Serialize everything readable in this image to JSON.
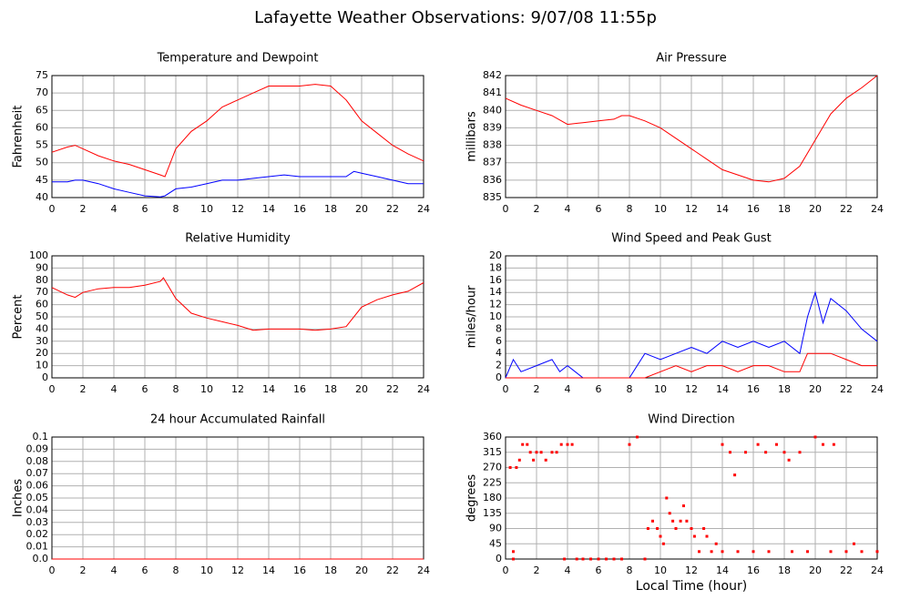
{
  "title": "Lafayette Weather Observations: 9/07/08 11:55p",
  "xlabel": "Local Time (hour)",
  "chart_data": [
    {
      "type": "line",
      "title": "Temperature and Dewpoint",
      "ylabel": "Fahrenheit",
      "x": [
        0,
        1,
        1.5,
        2,
        3,
        4,
        5,
        6,
        7,
        7.3,
        8,
        9,
        10,
        11,
        12,
        13,
        14,
        15,
        16,
        17,
        18,
        19,
        19.5,
        20,
        21,
        22,
        23,
        24
      ],
      "series": [
        {
          "color": "#ff0000",
          "values": [
            53,
            54.5,
            55,
            54,
            52,
            50.5,
            49.5,
            48,
            46.5,
            46,
            54,
            59,
            62,
            66,
            68,
            70,
            72,
            72,
            72,
            72.5,
            72,
            68,
            65,
            62,
            58.5,
            55,
            52.5,
            50.5
          ]
        },
        {
          "color": "#0000ff",
          "values": [
            44.5,
            44.5,
            45,
            45,
            44,
            42.5,
            41.5,
            40.5,
            40.2,
            40.5,
            42.5,
            43,
            44,
            45,
            45,
            45.5,
            46,
            46.5,
            46,
            46,
            46,
            46,
            47.5,
            47,
            46,
            45,
            44,
            44
          ]
        }
      ],
      "xlim": [
        0,
        24
      ],
      "xticks": [
        0,
        2,
        4,
        6,
        8,
        10,
        12,
        14,
        16,
        18,
        20,
        22,
        24
      ],
      "ylim": [
        40,
        75
      ],
      "yticks": [
        40,
        45,
        50,
        55,
        60,
        65,
        70,
        75
      ],
      "grid": true
    },
    {
      "type": "line",
      "title": "Air Pressure",
      "ylabel": "millibars",
      "x": [
        0,
        1,
        2,
        3,
        4,
        5,
        6,
        7,
        7.5,
        8,
        9,
        10,
        11,
        12,
        13,
        14,
        15,
        16,
        17,
        18,
        19,
        20,
        21,
        22,
        23,
        24
      ],
      "series": [
        {
          "color": "#ff0000",
          "values": [
            840.7,
            840.3,
            840,
            839.7,
            839.2,
            839.3,
            839.4,
            839.5,
            839.7,
            839.7,
            839.4,
            839,
            838.4,
            837.8,
            837.2,
            836.6,
            836.3,
            836,
            835.9,
            836.1,
            836.8,
            838.3,
            839.8,
            840.7,
            841.3,
            842
          ]
        }
      ],
      "xlim": [
        0,
        24
      ],
      "xticks": [
        0,
        2,
        4,
        6,
        8,
        10,
        12,
        14,
        16,
        18,
        20,
        22,
        24
      ],
      "ylim": [
        835,
        842
      ],
      "yticks": [
        835,
        836,
        837,
        838,
        839,
        840,
        841,
        842
      ],
      "grid": true
    },
    {
      "type": "line",
      "title": "Relative Humidity",
      "ylabel": "Percent",
      "x": [
        0,
        1,
        1.5,
        2,
        3,
        4,
        5,
        6,
        7,
        7.2,
        8,
        9,
        10,
        11,
        12,
        13,
        14,
        15,
        16,
        17,
        18,
        19,
        20,
        21,
        22,
        23,
        24
      ],
      "series": [
        {
          "color": "#ff0000",
          "values": [
            74,
            68,
            66,
            70,
            73,
            74,
            74,
            76,
            79,
            82,
            65,
            53,
            49,
            46,
            43,
            39,
            40,
            40,
            40,
            39,
            40,
            42,
            58,
            64,
            68,
            71,
            78
          ]
        }
      ],
      "xlim": [
        0,
        24
      ],
      "xticks": [
        0,
        2,
        4,
        6,
        8,
        10,
        12,
        14,
        16,
        18,
        20,
        22,
        24
      ],
      "ylim": [
        0,
        100
      ],
      "yticks": [
        0,
        10,
        20,
        30,
        40,
        50,
        60,
        70,
        80,
        90,
        100
      ],
      "grid": true
    },
    {
      "type": "line",
      "title": "Wind Speed and Peak Gust",
      "ylabel": "miles/hour",
      "x": [
        0,
        0.5,
        1,
        2,
        3,
        3.5,
        4,
        4.5,
        5,
        8,
        9,
        10,
        11,
        12,
        13,
        14,
        15,
        16,
        17,
        18,
        19,
        19.5,
        20,
        20.5,
        21,
        22,
        23,
        24
      ],
      "series": [
        {
          "color": "#0000ff",
          "values": [
            0,
            3,
            1,
            2,
            3,
            1,
            2,
            1,
            0,
            0,
            4,
            3,
            4,
            5,
            4,
            6,
            5,
            6,
            5,
            6,
            4,
            10,
            14,
            9,
            13,
            11,
            8,
            6
          ]
        },
        {
          "color": "#ff0000",
          "values": [
            0,
            0,
            0,
            0,
            0,
            0,
            0,
            0,
            0,
            0,
            0,
            1,
            2,
            1,
            2,
            2,
            1,
            2,
            2,
            1,
            1,
            4,
            4,
            4,
            4,
            3,
            2,
            2
          ]
        }
      ],
      "xlim": [
        0,
        24
      ],
      "xticks": [
        0,
        2,
        4,
        6,
        8,
        10,
        12,
        14,
        16,
        18,
        20,
        22,
        24
      ],
      "ylim": [
        0,
        20
      ],
      "yticks": [
        0,
        2,
        4,
        6,
        8,
        10,
        12,
        14,
        16,
        18,
        20
      ],
      "grid": true
    },
    {
      "type": "line",
      "title": "24 hour Accumulated Rainfall",
      "ylabel": "Inches",
      "x": [
        0,
        24
      ],
      "series": [
        {
          "color": "#ff0000",
          "values": [
            0,
            0
          ]
        }
      ],
      "xlim": [
        0,
        24
      ],
      "xticks": [
        0,
        2,
        4,
        6,
        8,
        10,
        12,
        14,
        16,
        18,
        20,
        22,
        24
      ],
      "ylim": [
        0,
        0.1
      ],
      "yticks": [
        {
          "value": 0,
          "label": "0.0"
        },
        0.01,
        0.02,
        0.03,
        0.04,
        0.05,
        0.06,
        0.07,
        0.08,
        0.09,
        0.1
      ],
      "grid": true
    },
    {
      "type": "scatter",
      "title": "Wind Direction",
      "ylabel": "degrees",
      "x": [
        0.3,
        0.5,
        0.5,
        0.7,
        0.9,
        1.1,
        1.4,
        1.6,
        1.8,
        2,
        2.3,
        2.6,
        3,
        3.3,
        3.6,
        3.8,
        4,
        4.3,
        4.6,
        5,
        5.5,
        6,
        6.5,
        7,
        7.5,
        8,
        8.5,
        9,
        9.2,
        9.5,
        9.8,
        10,
        10.2,
        10.4,
        10.6,
        10.8,
        11,
        11.3,
        11.5,
        11.7,
        12,
        12.2,
        12.5,
        12.8,
        13,
        13.3,
        13.6,
        14,
        14,
        14.5,
        14.8,
        15,
        15.5,
        16,
        16.3,
        16.8,
        17,
        17.5,
        18,
        18.3,
        18.5,
        19,
        19.5,
        20,
        20.5,
        21,
        21.2,
        22,
        22.5,
        23,
        24
      ],
      "series": [
        {
          "color": "#ff0000",
          "values": [
            270,
            0,
            22,
            270,
            292,
            338,
            338,
            315,
            292,
            315,
            315,
            292,
            315,
            315,
            338,
            0,
            338,
            338,
            0,
            0,
            0,
            0,
            0,
            0,
            0,
            338,
            360,
            0,
            90,
            112,
            90,
            67,
            45,
            180,
            135,
            112,
            90,
            112,
            157,
            112,
            90,
            67,
            22,
            90,
            67,
            22,
            45,
            22,
            338,
            315,
            248,
            22,
            315,
            22,
            338,
            315,
            22,
            338,
            315,
            292,
            22,
            315,
            22,
            360,
            338,
            22,
            338,
            22,
            45,
            22,
            22
          ]
        }
      ],
      "xlim": [
        0,
        24
      ],
      "xticks": [
        0,
        2,
        4,
        6,
        8,
        10,
        12,
        14,
        16,
        18,
        20,
        22,
        24
      ],
      "ylim": [
        0,
        360
      ],
      "yticks": [
        0,
        45,
        90,
        135,
        180,
        225,
        270,
        315,
        360
      ],
      "grid": true
    }
  ]
}
